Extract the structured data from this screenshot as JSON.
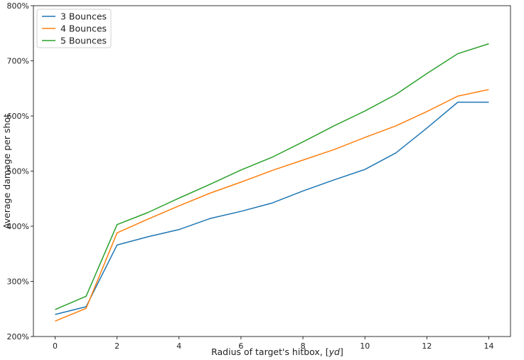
{
  "chart_data": {
    "type": "line",
    "title": "",
    "xlabel": "Radius of target's hitbox, [",
    "xlabel_italic": "yd",
    "xlabel_suffix": "]",
    "ylabel": "Average damage per shot",
    "xlim": [
      -0.7,
      14.7
    ],
    "ylim": [
      200,
      800
    ],
    "x_ticks": [
      0,
      2,
      4,
      6,
      8,
      10,
      12,
      14
    ],
    "x_tick_labels": [
      "0",
      "2",
      "4",
      "6",
      "8",
      "10",
      "12",
      "14"
    ],
    "y_ticks": [
      200,
      300,
      400,
      500,
      600,
      700,
      800
    ],
    "y_tick_labels": [
      "200%",
      "300%",
      "400%",
      "500%",
      "600%",
      "700%",
      "800%"
    ],
    "grid": false,
    "legend_position": "top-left",
    "x": [
      0,
      1,
      2,
      3,
      4,
      5,
      6,
      7,
      8,
      9,
      10,
      11,
      12,
      13,
      14
    ],
    "series": [
      {
        "name": "3 Bounces",
        "color": "#1f77b4",
        "values": [
          240,
          254,
          366,
          381,
          394,
          414,
          427,
          442,
          464,
          484,
          503,
          533,
          578,
          625,
          625
        ]
      },
      {
        "name": "4 Bounces",
        "color": "#ff7f0e",
        "values": [
          228,
          251,
          388,
          413,
          437,
          460,
          480,
          501,
          520,
          539,
          561,
          582,
          608,
          636,
          648
        ]
      },
      {
        "name": "5 Bounces",
        "color": "#2ca02c",
        "values": [
          249,
          273,
          403,
          425,
          451,
          476,
          502,
          525,
          553,
          582,
          609,
          639,
          677,
          713,
          731
        ]
      }
    ]
  }
}
